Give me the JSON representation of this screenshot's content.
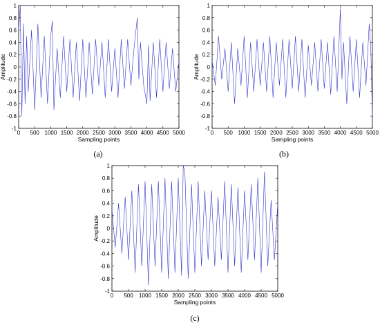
{
  "figure": {
    "panels": [
      {
        "label": "(a)"
      },
      {
        "label": "(b)"
      },
      {
        "label": "(c)"
      }
    ]
  },
  "chart_data": [
    {
      "type": "line",
      "panel": "(a)",
      "xlabel": "Sampling points",
      "ylabel": "Amplitude",
      "xlim": [
        0,
        5000
      ],
      "ylim": [
        -1,
        1
      ],
      "xticks": [
        0,
        500,
        1000,
        1500,
        2000,
        2500,
        3000,
        3500,
        4000,
        4500,
        5000
      ],
      "yticks": [
        -1,
        -0.8,
        -0.6,
        -0.4,
        -0.2,
        0,
        0.2,
        0.4,
        0.6,
        0.8,
        1
      ],
      "grid": false,
      "line_color": "#3333cc",
      "series": [
        {
          "x": [
            0,
            50,
            100,
            150,
            200,
            250,
            300,
            400,
            500,
            600,
            700,
            800,
            900,
            1000,
            1050,
            1100,
            1200,
            1300,
            1400,
            1500,
            1600,
            1700,
            1800,
            1900,
            2000,
            2100,
            2200,
            2300,
            2400,
            2500,
            2600,
            2700,
            2800,
            2900,
            3000,
            3100,
            3200,
            3300,
            3400,
            3500,
            3600,
            3700,
            3750,
            3800,
            3900,
            4000,
            4050,
            4100,
            4200,
            4300,
            4400,
            4500,
            4600,
            4700,
            4800,
            4900,
            5000
          ],
          "y": [
            0.6,
            1.0,
            -0.8,
            0.7,
            -0.6,
            0.5,
            -0.4,
            0.6,
            -0.7,
            0.7,
            -0.5,
            0.5,
            -0.6,
            0.5,
            0.75,
            -0.7,
            0.3,
            -0.5,
            0.5,
            -0.4,
            0.45,
            -0.5,
            0.4,
            -0.55,
            0.45,
            -0.5,
            0.4,
            -0.45,
            0.45,
            -0.3,
            0.4,
            -0.5,
            0.45,
            -0.4,
            0.3,
            -0.5,
            0.45,
            -0.35,
            0.45,
            -0.3,
            0.3,
            0.8,
            -0.2,
            0.4,
            -0.3,
            -0.6,
            0.35,
            -0.55,
            0.4,
            -0.5,
            0.45,
            -0.4,
            0.4,
            -0.35,
            0.3,
            -0.4,
            0.1
          ]
        }
      ]
    },
    {
      "type": "line",
      "panel": "(b)",
      "xlabel": "Sampling points",
      "ylabel": "Amplitude",
      "xlim": [
        0,
        5000
      ],
      "ylim": [
        -1,
        1
      ],
      "xticks": [
        0,
        500,
        1000,
        1500,
        2000,
        2500,
        3000,
        3500,
        4000,
        4500,
        5000
      ],
      "yticks": [
        -1,
        -0.8,
        -0.6,
        -0.4,
        -0.2,
        0,
        0.2,
        0.4,
        0.6,
        0.8,
        1
      ],
      "grid": false,
      "line_color": "#3333cc",
      "series": [
        {
          "x": [
            0,
            100,
            200,
            300,
            400,
            500,
            600,
            700,
            800,
            900,
            1000,
            1100,
            1200,
            1300,
            1400,
            1500,
            1600,
            1700,
            1800,
            1900,
            2000,
            2100,
            2200,
            2300,
            2400,
            2500,
            2600,
            2700,
            2800,
            2900,
            3000,
            3100,
            3200,
            3300,
            3400,
            3500,
            3600,
            3700,
            3800,
            3900,
            4000,
            4050,
            4100,
            4200,
            4300,
            4400,
            4500,
            4600,
            4700,
            4800,
            4900,
            4950,
            5000
          ],
          "y": [
            0.1,
            -0.3,
            0.5,
            -0.2,
            0.3,
            -0.4,
            0.4,
            -0.6,
            0.3,
            -0.3,
            0.5,
            -0.5,
            0.4,
            -0.4,
            0.45,
            -0.3,
            0.4,
            -0.4,
            0.5,
            -0.5,
            0.4,
            -0.3,
            0.45,
            -0.5,
            0.45,
            -0.35,
            0.5,
            -0.4,
            0.45,
            -0.5,
            0.35,
            -0.3,
            0.4,
            -0.4,
            0.45,
            -0.35,
            0.4,
            -0.45,
            0.5,
            -0.4,
            0.95,
            -0.2,
            0.4,
            -0.6,
            0.5,
            -0.4,
            0.45,
            -0.5,
            0.4,
            -0.3,
            0.7,
            0.3,
            -0.8
          ]
        }
      ]
    },
    {
      "type": "line",
      "panel": "(c)",
      "xlabel": "Sampling points",
      "ylabel": "Amplitude",
      "xlim": [
        0,
        5000
      ],
      "ylim": [
        -1,
        1
      ],
      "xticks": [
        0,
        500,
        1000,
        1500,
        2000,
        2500,
        3000,
        3500,
        4000,
        4500,
        5000
      ],
      "yticks": [
        -1,
        -0.8,
        -0.6,
        -0.4,
        -0.2,
        0,
        0.2,
        0.4,
        0.6,
        0.8,
        1
      ],
      "grid": false,
      "line_color": "#3333cc",
      "series": [
        {
          "x": [
            0,
            100,
            200,
            300,
            400,
            500,
            600,
            700,
            800,
            900,
            1000,
            1100,
            1200,
            1300,
            1400,
            1500,
            1600,
            1700,
            1800,
            1900,
            2000,
            2100,
            2150,
            2200,
            2300,
            2400,
            2500,
            2600,
            2700,
            2800,
            2900,
            3000,
            3100,
            3200,
            3300,
            3400,
            3500,
            3600,
            3700,
            3800,
            3900,
            4000,
            4100,
            4200,
            4300,
            4400,
            4500,
            4600,
            4700,
            4800,
            4900,
            5000
          ],
          "y": [
            0.3,
            -0.3,
            0.4,
            -0.4,
            0.5,
            -0.5,
            0.6,
            -0.7,
            0.7,
            -0.6,
            0.75,
            -0.9,
            0.7,
            -0.6,
            0.75,
            -0.7,
            0.8,
            -0.8,
            0.75,
            -0.7,
            0.8,
            -0.75,
            1.0,
            0.9,
            -0.8,
            0.7,
            -0.7,
            0.75,
            -0.6,
            0.6,
            -0.5,
            0.6,
            -0.6,
            0.5,
            -0.5,
            0.75,
            -0.7,
            0.7,
            -0.6,
            0.65,
            -0.7,
            0.6,
            -0.5,
            0.7,
            -0.5,
            0.8,
            -0.7,
            0.9,
            -0.6,
            0.45,
            -0.5,
            0.4
          ]
        }
      ]
    }
  ]
}
